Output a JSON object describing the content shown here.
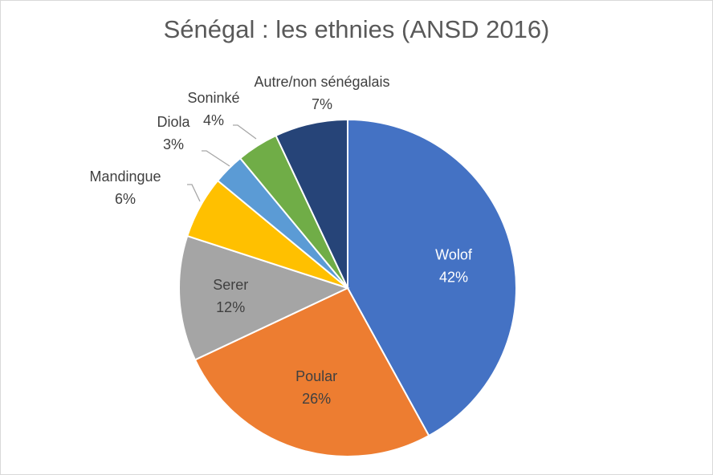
{
  "chart_data": {
    "type": "pie",
    "title": "Sénégal : les ethnies (ANSD 2016)",
    "slices": [
      {
        "label": "Wolof",
        "value": 42,
        "value_label": "42%",
        "color": "#4472c4",
        "label_inside": true
      },
      {
        "label": "Poular",
        "value": 26,
        "value_label": "26%",
        "color": "#ed7d31",
        "label_inside": true
      },
      {
        "label": "Serer",
        "value": 12,
        "value_label": "12%",
        "color": "#a5a5a5",
        "label_inside": true
      },
      {
        "label": "Mandingue",
        "value": 6,
        "value_label": "6%",
        "color": "#ffc000",
        "label_inside": false
      },
      {
        "label": "Diola",
        "value": 3,
        "value_label": "3%",
        "color": "#5b9bd5",
        "label_inside": false
      },
      {
        "label": "Soninké",
        "value": 4,
        "value_label": "4%",
        "color": "#70ad47",
        "label_inside": false
      },
      {
        "label": "Autre/non sénégalais",
        "value": 7,
        "value_label": "7%",
        "color": "#264478",
        "label_inside": false
      }
    ],
    "start_angle_deg": 0,
    "direction": "clockwise",
    "legend": "none"
  }
}
